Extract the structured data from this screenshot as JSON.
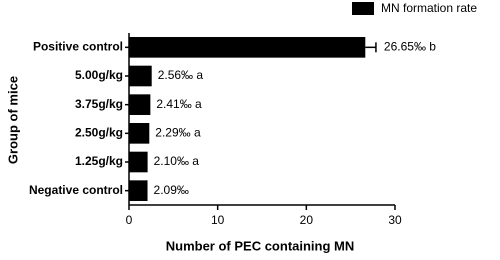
{
  "chart_data": {
    "type": "barh",
    "x_label": "Number of PEC containing MN",
    "y_label": "Group of mice",
    "categories": [
      "Positive control",
      "5.00g/kg",
      "3.75g/kg",
      "2.50g/kg",
      "1.25g/kg",
      "Negative control"
    ],
    "series": [
      {
        "name": "MN formation rate",
        "color": "#000000",
        "values": [
          26.65,
          2.56,
          2.41,
          2.29,
          2.1,
          2.09
        ],
        "errors": [
          1.2,
          null,
          null,
          null,
          null,
          null
        ],
        "value_labels": [
          "26.65‰ b",
          "2.56‰ a",
          "2.41‰ a",
          "2.29‰ a",
          "2.10‰ a",
          "2.09‰"
        ]
      }
    ],
    "xlim": [
      0,
      30
    ],
    "xticks": [
      0,
      10,
      20,
      30
    ],
    "legend": "top-right"
  }
}
